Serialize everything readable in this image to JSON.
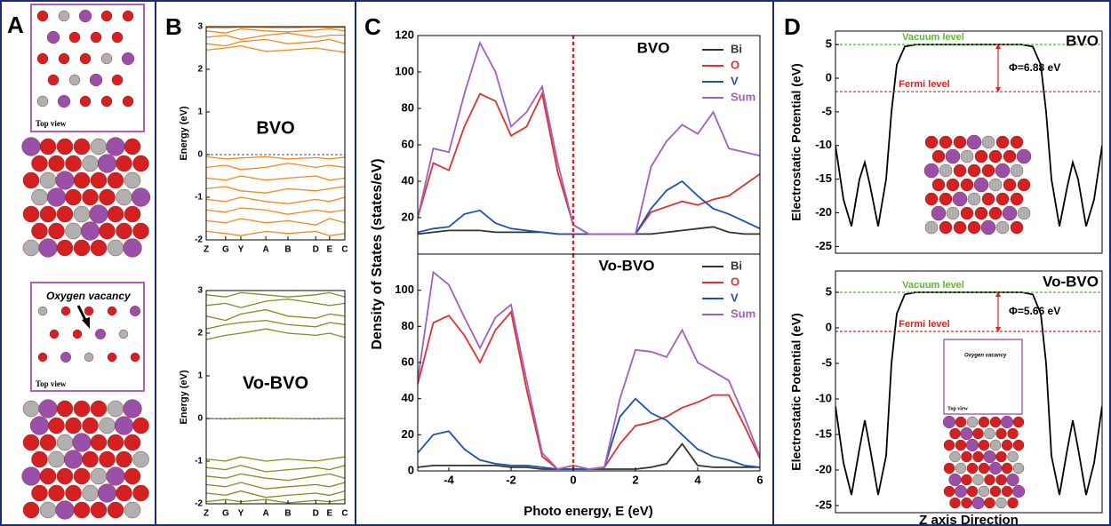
{
  "panel_labels": [
    "A",
    "B",
    "C",
    "D"
  ],
  "structures": {
    "top_view_1": "Top view",
    "vacancy": "Oxygen vacancy",
    "top_view_2": "Top view",
    "inset_vacancy": "Oxygen vacancy",
    "inset_top_view": "Top view"
  },
  "chart_data": [
    {
      "type": "line",
      "title": "BVO",
      "ylabel": "Energy (eV)",
      "x": [
        0,
        0.14,
        0.25,
        0.43,
        0.59,
        0.79,
        0.89,
        1
      ],
      "xlim": [
        0,
        1
      ],
      "xticks": [
        {
          "value": 0,
          "label": "Z"
        },
        {
          "value": 0.14,
          "label": "G"
        },
        {
          "value": 0.25,
          "label": "Y"
        },
        {
          "value": 0.43,
          "label": "A"
        },
        {
          "value": 0.59,
          "label": "B"
        },
        {
          "value": 0.79,
          "label": "D"
        },
        {
          "value": 0.89,
          "label": "E"
        },
        {
          "value": 1,
          "label": "C"
        }
      ],
      "ylim": [
        -2,
        3
      ],
      "yticks": [
        -2,
        -1,
        0,
        1,
        2,
        3
      ],
      "hlines": [
        0
      ],
      "series": [
        {
          "color": "#f08a24",
          "values": [
            2.45,
            2.5,
            2.55,
            2.42,
            2.45,
            2.5,
            2.45,
            2.4
          ]
        },
        {
          "color": "#f08a24",
          "values": [
            2.6,
            2.55,
            2.65,
            2.7,
            2.6,
            2.65,
            2.7,
            2.6
          ]
        },
        {
          "color": "#f08a24",
          "values": [
            2.75,
            2.8,
            2.7,
            2.8,
            2.85,
            2.75,
            2.8,
            2.8
          ]
        },
        {
          "color": "#f08a24",
          "values": [
            2.9,
            2.85,
            2.95,
            2.9,
            2.88,
            2.92,
            2.95,
            2.9
          ]
        },
        {
          "color": "#f08a24",
          "values": [
            2.98,
            2.97,
            2.99,
            2.98,
            2.97,
            2.99,
            2.98,
            2.98
          ]
        },
        {
          "color": "#f08a24",
          "values": [
            -0.05,
            -0.1,
            -0.08,
            -0.05,
            -0.1,
            -0.07,
            -0.1,
            -0.06
          ]
        },
        {
          "color": "#f08a24",
          "values": [
            -0.3,
            -0.25,
            -0.35,
            -0.3,
            -0.2,
            -0.3,
            -0.25,
            -0.3
          ]
        },
        {
          "color": "#f08a24",
          "values": [
            -0.55,
            -0.6,
            -0.5,
            -0.6,
            -0.55,
            -0.5,
            -0.6,
            -0.55
          ]
        },
        {
          "color": "#f08a24",
          "values": [
            -0.8,
            -0.75,
            -0.85,
            -0.9,
            -0.8,
            -0.85,
            -0.8,
            -0.75
          ]
        },
        {
          "color": "#f08a24",
          "values": [
            -1.05,
            -1.1,
            -1.0,
            -1.1,
            -1.15,
            -1.05,
            -1.1,
            -1.0
          ]
        },
        {
          "color": "#f08a24",
          "values": [
            -1.3,
            -1.35,
            -1.25,
            -1.3,
            -1.4,
            -1.3,
            -1.35,
            -1.3
          ]
        },
        {
          "color": "#f08a24",
          "values": [
            -1.55,
            -1.6,
            -1.5,
            -1.6,
            -1.55,
            -1.65,
            -1.5,
            -1.6
          ]
        },
        {
          "color": "#f08a24",
          "values": [
            -1.8,
            -1.85,
            -1.9,
            -1.8,
            -1.85,
            -1.8,
            -1.9,
            -1.85
          ]
        }
      ]
    },
    {
      "type": "line",
      "title": "Vo-BVO",
      "ylabel": "Energy (eV)",
      "x": [
        0,
        0.14,
        0.25,
        0.43,
        0.59,
        0.79,
        0.89,
        1
      ],
      "xlim": [
        0,
        1
      ],
      "xticks": [
        {
          "value": 0,
          "label": "Z"
        },
        {
          "value": 0.14,
          "label": "G"
        },
        {
          "value": 0.25,
          "label": "Y"
        },
        {
          "value": 0.43,
          "label": "A"
        },
        {
          "value": 0.59,
          "label": "B"
        },
        {
          "value": 0.79,
          "label": "D"
        },
        {
          "value": 0.89,
          "label": "E"
        },
        {
          "value": 1,
          "label": "C"
        }
      ],
      "ylim": [
        -2,
        3
      ],
      "yticks": [
        -2,
        -1,
        0,
        1,
        2,
        3
      ],
      "hlines": [
        0
      ],
      "series": [
        {
          "color": "#8a8a1e",
          "values": [
            1.85,
            1.95,
            2.0,
            2.1,
            2.0,
            1.95,
            2.0,
            1.9
          ]
        },
        {
          "color": "#8a8a1e",
          "values": [
            2.1,
            2.2,
            2.25,
            2.3,
            2.2,
            2.15,
            2.25,
            2.2
          ]
        },
        {
          "color": "#8a8a1e",
          "values": [
            2.4,
            2.3,
            2.45,
            2.55,
            2.4,
            2.35,
            2.45,
            2.4
          ]
        },
        {
          "color": "#8a8a1e",
          "values": [
            2.65,
            2.7,
            2.6,
            2.75,
            2.8,
            2.7,
            2.65,
            2.7
          ]
        },
        {
          "color": "#8a8a1e",
          "values": [
            2.9,
            2.85,
            2.95,
            2.9,
            2.85,
            2.9,
            2.95,
            2.85
          ]
        },
        {
          "color": "#8a8a1e",
          "values": [
            0.0,
            -0.01,
            0.0,
            0.01,
            0.0,
            -0.01,
            0.0,
            0.0
          ]
        },
        {
          "color": "#8a8a1e",
          "values": [
            -0.95,
            -1.0,
            -0.9,
            -1.0,
            -0.95,
            -1.0,
            -0.95,
            -0.9
          ]
        },
        {
          "color": "#8a8a1e",
          "values": [
            -1.15,
            -1.2,
            -1.1,
            -1.25,
            -1.2,
            -1.15,
            -1.2,
            -1.1
          ]
        },
        {
          "color": "#8a8a1e",
          "values": [
            -1.35,
            -1.4,
            -1.3,
            -1.4,
            -1.45,
            -1.35,
            -1.3,
            -1.4
          ]
        },
        {
          "color": "#8a8a1e",
          "values": [
            -1.55,
            -1.6,
            -1.5,
            -1.65,
            -1.6,
            -1.55,
            -1.6,
            -1.5
          ]
        },
        {
          "color": "#8a8a1e",
          "values": [
            -1.75,
            -1.8,
            -1.7,
            -1.85,
            -1.8,
            -1.75,
            -1.8,
            -1.7
          ]
        },
        {
          "color": "#8a8a1e",
          "values": [
            -1.95,
            -1.9,
            -1.95,
            -1.9,
            -1.98,
            -1.92,
            -1.95,
            -1.9
          ]
        }
      ]
    },
    {
      "type": "line",
      "title": "BVO",
      "ylabel": "Density of States (states/eV)",
      "x": [
        -5,
        -4.5,
        -4,
        -3.5,
        -3,
        -2.5,
        -2,
        -1.5,
        -1,
        -0.5,
        0,
        0.5,
        1,
        1.5,
        2,
        2.5,
        3,
        3.5,
        4,
        4.5,
        5,
        5.5,
        6
      ],
      "xlim": [
        -5,
        6
      ],
      "ylim": [
        0,
        120
      ],
      "yticks": [
        20,
        40,
        60,
        80,
        100,
        120
      ],
      "vlines": [
        0
      ],
      "series": [
        {
          "name": "Bi",
          "color": "#333333",
          "values": [
            11,
            12,
            13,
            13,
            13,
            12,
            12,
            12,
            12,
            11,
            11,
            11,
            11,
            11,
            11,
            11,
            12,
            13,
            14,
            15,
            12,
            11,
            11
          ]
        },
        {
          "name": "O",
          "color": "#e03030",
          "values": [
            20,
            50,
            46,
            70,
            88,
            84,
            65,
            70,
            88,
            45,
            16,
            11,
            11,
            11,
            11,
            23,
            26,
            29,
            27,
            30,
            32,
            38,
            44
          ]
        },
        {
          "name": "V",
          "color": "#2050b0",
          "values": [
            12,
            14,
            15,
            22,
            24,
            17,
            14,
            13,
            12,
            11,
            11,
            11,
            11,
            11,
            11,
            25,
            35,
            40,
            32,
            25,
            22,
            18,
            14
          ]
        },
        {
          "name": "Sum",
          "color": "#a060c0",
          "values": [
            20,
            58,
            56,
            88,
            116,
            100,
            70,
            78,
            92,
            50,
            16,
            11,
            11,
            11,
            11,
            48,
            62,
            71,
            66,
            78,
            58,
            56,
            54
          ]
        }
      ]
    },
    {
      "type": "line",
      "title": "Vo-BVO",
      "xlabel": "Photo energy, E (eV)",
      "x": [
        -5,
        -4.5,
        -4,
        -3.5,
        -3,
        -2.5,
        -2,
        -1.5,
        -1,
        -0.5,
        0,
        0.5,
        1,
        1.5,
        2,
        2.5,
        3,
        3.5,
        4,
        4.5,
        5,
        5.5,
        6
      ],
      "xlim": [
        -5,
        6
      ],
      "xticks": [
        -4,
        -2,
        0,
        2,
        4,
        6
      ],
      "ylim": [
        0,
        120
      ],
      "yticks": [
        0,
        20,
        40,
        60,
        80,
        100
      ],
      "vlines": [
        0
      ],
      "series": [
        {
          "name": "Bi",
          "color": "#333333",
          "values": [
            2,
            3,
            3,
            3,
            3,
            3,
            2,
            2,
            1,
            1,
            1,
            1,
            1,
            1,
            1,
            2,
            4,
            15,
            3,
            2,
            2,
            2,
            2
          ]
        },
        {
          "name": "O",
          "color": "#e03030",
          "values": [
            48,
            82,
            86,
            75,
            60,
            78,
            88,
            45,
            8,
            1,
            3,
            1,
            2,
            15,
            25,
            27,
            30,
            35,
            38,
            42,
            42,
            25,
            7
          ]
        },
        {
          "name": "V",
          "color": "#2050b0",
          "values": [
            10,
            20,
            22,
            12,
            6,
            4,
            3,
            3,
            2,
            1,
            1,
            1,
            2,
            30,
            40,
            32,
            28,
            20,
            12,
            8,
            6,
            3,
            2
          ]
        },
        {
          "name": "Sum",
          "color": "#a060c0",
          "values": [
            50,
            110,
            103,
            85,
            68,
            85,
            92,
            50,
            10,
            1,
            3,
            1,
            2,
            40,
            67,
            66,
            63,
            78,
            60,
            55,
            50,
            30,
            8
          ]
        }
      ]
    },
    {
      "type": "line",
      "title": "BVO",
      "ylabel": "Electrostatic Potential (eV)",
      "annotation": "Φ=6.88 eV",
      "x": [
        0,
        3,
        6,
        9,
        11,
        13,
        16,
        19,
        21,
        23,
        26,
        30,
        50,
        70,
        74,
        77,
        79,
        81,
        84,
        87,
        89,
        91,
        94,
        97,
        100
      ],
      "xlim": [
        0,
        100
      ],
      "ylim": [
        -26,
        7
      ],
      "yticks": [
        5,
        0,
        -5,
        -10,
        -15,
        -20,
        -25
      ],
      "hlines": [
        {
          "value": 5,
          "label": "Vacuum level",
          "color": "#5cb82e"
        },
        {
          "value": -2,
          "label": "Fermi level",
          "color": "#e02020"
        }
      ],
      "series": [
        {
          "color": "#000000",
          "values": [
            -10,
            -18,
            -22,
            -15,
            -12.5,
            -16,
            -22,
            -15,
            -5,
            2,
            4.7,
            5,
            5,
            5,
            4.7,
            2,
            -5,
            -15,
            -22,
            -16,
            -12.5,
            -15,
            -22,
            -18,
            -10
          ]
        }
      ]
    },
    {
      "type": "line",
      "title": "Vo-BVO",
      "ylabel": "Electrostatic Potential (eV)",
      "xlabel": "Z axis Direction",
      "annotation": "Φ=5.66 eV",
      "x": [
        0,
        3,
        6,
        9,
        11,
        13,
        16,
        19,
        21,
        23,
        26,
        30,
        50,
        70,
        74,
        77,
        79,
        81,
        84,
        87,
        89,
        91,
        94,
        97,
        100
      ],
      "xlim": [
        0,
        100
      ],
      "ylim": [
        -26,
        8
      ],
      "yticks": [
        5,
        0,
        -5,
        -10,
        -15,
        -20,
        -25
      ],
      "hlines": [
        {
          "value": 5,
          "label": "Vacuum level",
          "color": "#5cb82e"
        },
        {
          "value": -0.5,
          "label": "Fermi level",
          "color": "#e02020"
        }
      ],
      "series": [
        {
          "color": "#000000",
          "values": [
            -11,
            -19,
            -23.5,
            -17,
            -13,
            -17,
            -23.5,
            -18,
            -5,
            2,
            4.7,
            5,
            5,
            5,
            4.7,
            2,
            -5,
            -18,
            -23.5,
            -17,
            -13,
            -17,
            -23.5,
            -19,
            -11
          ]
        }
      ]
    }
  ]
}
